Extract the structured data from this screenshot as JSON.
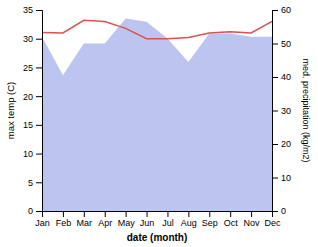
{
  "chart_data": {
    "type": "line",
    "categories": [
      "Jan",
      "Feb",
      "Mar",
      "Apr",
      "May",
      "Jun",
      "Jul",
      "Aug",
      "Sep",
      "Oct",
      "Nov",
      "Dec"
    ],
    "x_label": "date (month)",
    "y_label": "max temp (C)",
    "y2_label": "med. precipitation (kg/m2)",
    "series": [
      {
        "type": "area",
        "axis": "y2",
        "color": "#bcc5ef",
        "values": [
          52.0,
          40.5,
          50.0,
          50.0,
          57.5,
          56.5,
          51.5,
          44.5,
          53.0,
          53.0,
          52.0,
          52.0
        ]
      },
      {
        "type": "line",
        "color": "#d9534f",
        "values": [
          31.1,
          31.0,
          33.2,
          33.0,
          31.8,
          30.0,
          30.0,
          30.2,
          31.0,
          31.2,
          31.0,
          33.0
        ]
      }
    ],
    "ylim": [
      0,
      35
    ],
    "yticks": [
      0,
      5,
      10,
      15,
      20,
      25,
      30,
      35
    ],
    "y2lim": [
      0,
      60
    ],
    "y2ticks": [
      0,
      10,
      20,
      30,
      40,
      50,
      60
    ],
    "grid": false
  }
}
